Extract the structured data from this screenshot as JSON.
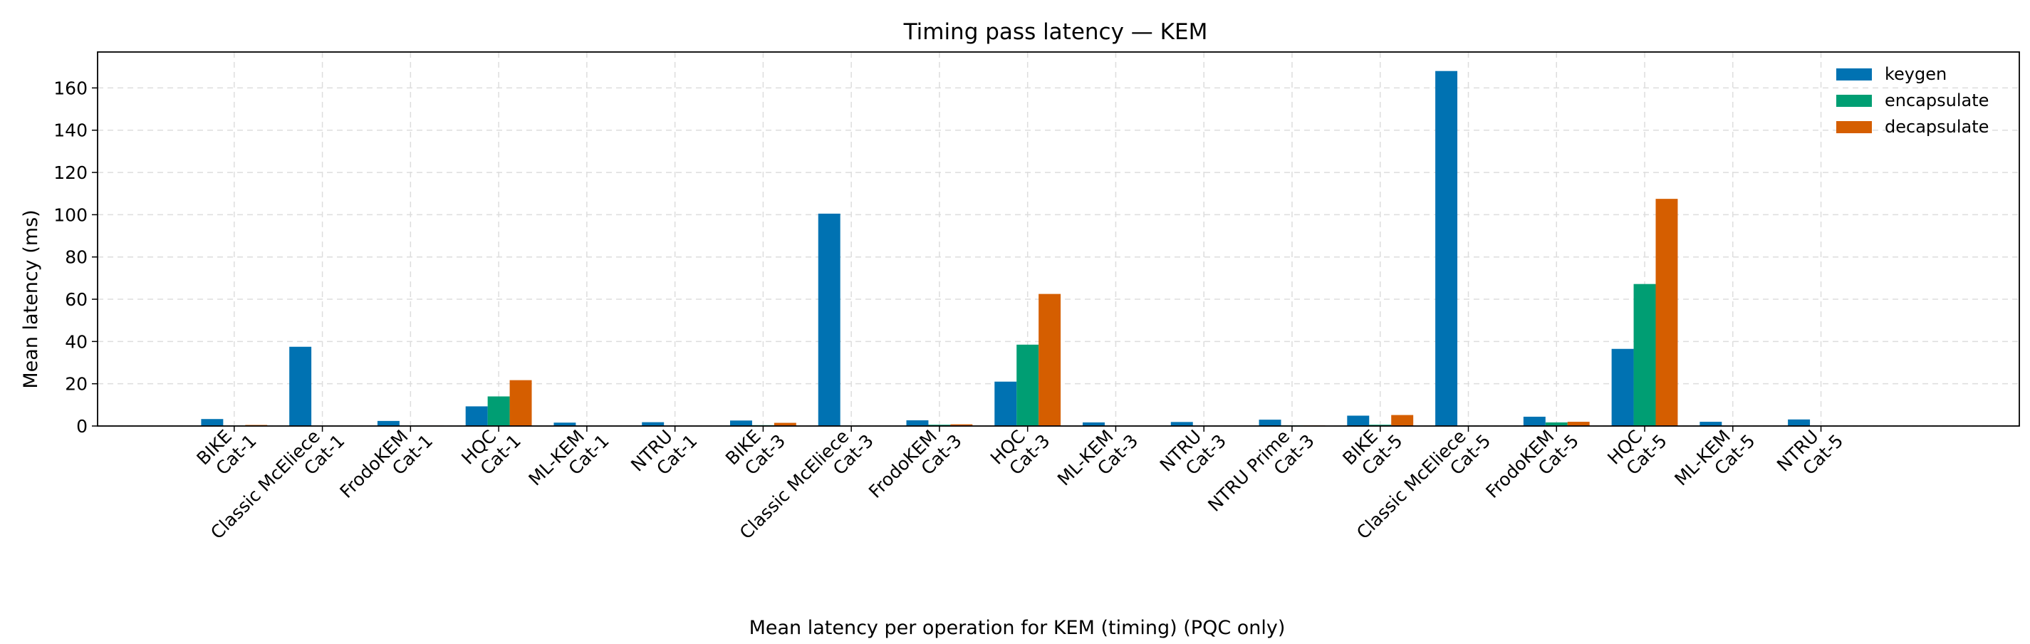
{
  "chart_data": {
    "type": "bar",
    "title": "Timing pass latency — KEM",
    "ylabel": "Mean latency (ms)",
    "caption": "Mean latency per operation for KEM (timing) (PQC only)",
    "ylim": [
      0,
      177
    ],
    "yticks": [
      0,
      20,
      40,
      60,
      80,
      100,
      120,
      140,
      160
    ],
    "grid": true,
    "legend_position": "top-right",
    "categories": [
      [
        "BIKE",
        "Cat-1"
      ],
      [
        "Classic McEliece",
        "Cat-1"
      ],
      [
        "FrodoKEM",
        "Cat-1"
      ],
      [
        "HQC",
        "Cat-1"
      ],
      [
        "ML-KEM",
        "Cat-1"
      ],
      [
        "NTRU",
        "Cat-1"
      ],
      [
        "BIKE",
        "Cat-3"
      ],
      [
        "Classic McEliece",
        "Cat-3"
      ],
      [
        "FrodoKEM",
        "Cat-3"
      ],
      [
        "HQC",
        "Cat-3"
      ],
      [
        "ML-KEM",
        "Cat-3"
      ],
      [
        "NTRU",
        "Cat-3"
      ],
      [
        "NTRU Prime",
        "Cat-3"
      ],
      [
        "BIKE",
        "Cat-5"
      ],
      [
        "Classic McEliece",
        "Cat-5"
      ],
      [
        "FrodoKEM",
        "Cat-5"
      ],
      [
        "HQC",
        "Cat-5"
      ],
      [
        "ML-KEM",
        "Cat-5"
      ],
      [
        "NTRU",
        "Cat-5"
      ]
    ],
    "series": [
      {
        "name": "keygen",
        "color": "#0072b2",
        "values": [
          3.3,
          37.5,
          2.4,
          9.3,
          1.6,
          1.8,
          2.6,
          100.5,
          2.7,
          21.0,
          1.7,
          1.9,
          3.0,
          4.9,
          168.0,
          4.4,
          36.5,
          2.0,
          3.1
        ]
      },
      {
        "name": "encapsulate",
        "color": "#009e73",
        "values": [
          0.2,
          0.1,
          0.2,
          14.0,
          0.1,
          0.1,
          0.4,
          0.2,
          0.6,
          38.5,
          0.1,
          0.1,
          0.3,
          0.6,
          0.2,
          1.7,
          67.2,
          0.1,
          0.1
        ]
      },
      {
        "name": "decapsulate",
        "color": "#d55e00",
        "values": [
          0.5,
          0.1,
          0.2,
          21.7,
          0.1,
          0.1,
          1.5,
          0.1,
          0.8,
          62.5,
          0.1,
          0.1,
          0.3,
          5.2,
          0.1,
          2.0,
          107.5,
          0.1,
          0.1
        ]
      }
    ]
  }
}
